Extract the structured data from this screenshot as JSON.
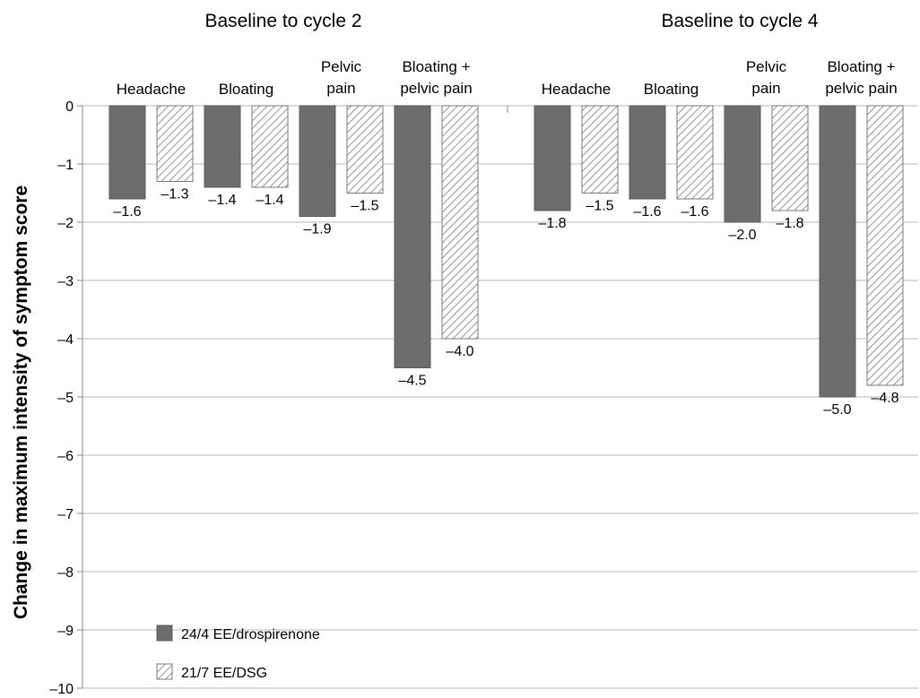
{
  "chart_data": {
    "type": "bar",
    "ylabel": "Change in maximum intensity of symptom score",
    "ylim": [
      -10,
      0
    ],
    "yticks": [
      0,
      -1,
      -2,
      -3,
      -4,
      -5,
      -6,
      -7,
      -8,
      -9,
      -10
    ],
    "ytick_labels": [
      "0",
      "–1",
      "–2",
      "–3",
      "–4",
      "–5",
      "–6",
      "–7",
      "–8",
      "–9",
      "–10"
    ],
    "grid": true,
    "legend_position": "bottom-left",
    "series": [
      {
        "name": "24/4 EE/drospirenone",
        "style": "solid",
        "color": "#6d6d6d"
      },
      {
        "name": "21/7 EE/DSG",
        "style": "hatched",
        "color": "#ffffff"
      }
    ],
    "groups": [
      {
        "title": "Baseline to cycle 2",
        "categories": [
          {
            "label": [
              "Headache"
            ],
            "values": [
              -1.6,
              -1.3
            ],
            "labels": [
              "–1.6",
              "–1.3"
            ]
          },
          {
            "label": [
              "Bloating"
            ],
            "values": [
              -1.4,
              -1.4
            ],
            "labels": [
              "–1.4",
              "–1.4"
            ]
          },
          {
            "label": [
              "Pelvic",
              "pain"
            ],
            "values": [
              -1.9,
              -1.5
            ],
            "labels": [
              "–1.9",
              "–1.5"
            ]
          },
          {
            "label": [
              "Bloating +",
              "pelvic pain"
            ],
            "values": [
              -4.5,
              -4.0
            ],
            "labels": [
              "–4.5",
              "–4.0"
            ]
          }
        ]
      },
      {
        "title": "Baseline to cycle 4",
        "categories": [
          {
            "label": [
              "Headache"
            ],
            "values": [
              -1.8,
              -1.5
            ],
            "labels": [
              "–1.8",
              "–1.5"
            ]
          },
          {
            "label": [
              "Bloating"
            ],
            "values": [
              -1.6,
              -1.6
            ],
            "labels": [
              "–1.6",
              "–1.6"
            ]
          },
          {
            "label": [
              "Pelvic",
              "pain"
            ],
            "values": [
              -2.0,
              -1.8
            ],
            "labels": [
              "–2.0",
              "–1.8"
            ]
          },
          {
            "label": [
              "Bloating +",
              "pelvic pain"
            ],
            "values": [
              -5.0,
              -4.8
            ],
            "labels": [
              "–5.0",
              "–4.8"
            ]
          }
        ]
      }
    ]
  }
}
